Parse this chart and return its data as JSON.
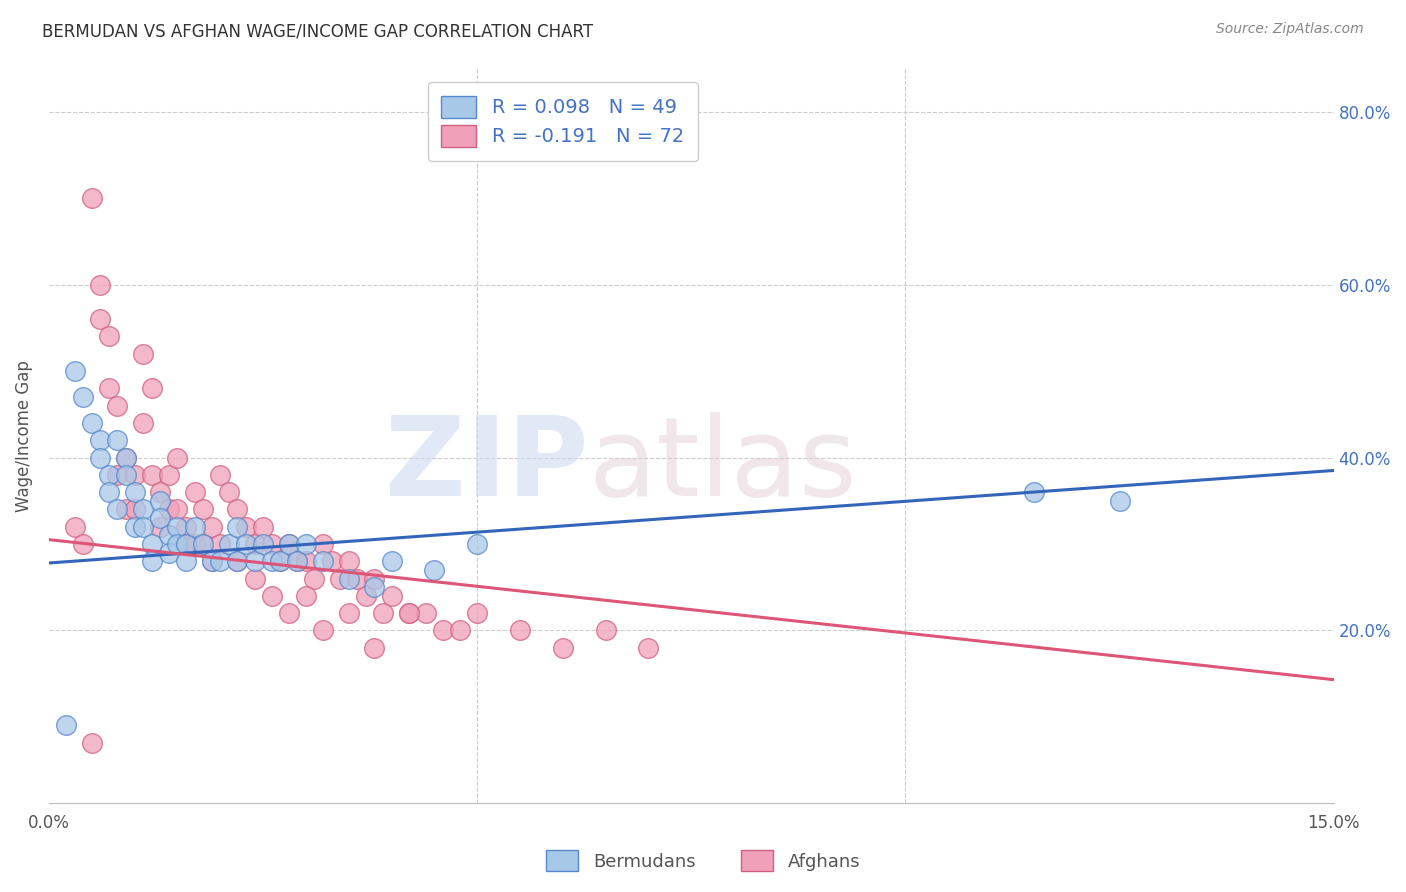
{
  "title": "BERMUDAN VS AFGHAN WAGE/INCOME GAP CORRELATION CHART",
  "source": "Source: ZipAtlas.com",
  "ylabel": "Wage/Income Gap",
  "legend_label1": "Bermudans",
  "legend_label2": "Afghans",
  "R_bermuda": 0.098,
  "N_bermuda": 49,
  "R_afghan": -0.191,
  "N_afghan": 72,
  "xmin": 0.0,
  "xmax": 0.15,
  "ymin": 0.0,
  "ymax": 0.85,
  "yticks": [
    0.2,
    0.4,
    0.6,
    0.8
  ],
  "ytick_labels": [
    "20.0%",
    "40.0%",
    "60.0%",
    "80.0%"
  ],
  "color_bermuda_fill": "#a8c8e8",
  "color_bermuda_edge": "#5588cc",
  "color_afghan_fill": "#f0a0b8",
  "color_afghan_edge": "#d06080",
  "color_bermuda_line": "#3366bb",
  "color_afghan_line": "#dd5577",
  "color_title": "#333333",
  "color_source": "#888888",
  "color_ylabel": "#555555",
  "color_right_tick": "#4472c4",
  "color_grid": "#cccccc",
  "bermuda_x": [
    0.003,
    0.004,
    0.005,
    0.006,
    0.006,
    0.007,
    0.007,
    0.008,
    0.008,
    0.009,
    0.009,
    0.01,
    0.01,
    0.011,
    0.011,
    0.012,
    0.012,
    0.013,
    0.013,
    0.014,
    0.014,
    0.015,
    0.015,
    0.016,
    0.016,
    0.017,
    0.018,
    0.019,
    0.02,
    0.021,
    0.022,
    0.022,
    0.023,
    0.024,
    0.025,
    0.026,
    0.027,
    0.028,
    0.029,
    0.03,
    0.032,
    0.035,
    0.038,
    0.04,
    0.045,
    0.05,
    0.115,
    0.125,
    0.002
  ],
  "bermuda_y": [
    0.5,
    0.47,
    0.44,
    0.42,
    0.4,
    0.38,
    0.36,
    0.34,
    0.42,
    0.4,
    0.38,
    0.36,
    0.32,
    0.34,
    0.32,
    0.3,
    0.28,
    0.35,
    0.33,
    0.31,
    0.29,
    0.32,
    0.3,
    0.3,
    0.28,
    0.32,
    0.3,
    0.28,
    0.28,
    0.3,
    0.32,
    0.28,
    0.3,
    0.28,
    0.3,
    0.28,
    0.28,
    0.3,
    0.28,
    0.3,
    0.28,
    0.26,
    0.25,
    0.28,
    0.27,
    0.3,
    0.36,
    0.35,
    0.09
  ],
  "afghan_x": [
    0.003,
    0.004,
    0.005,
    0.006,
    0.006,
    0.007,
    0.007,
    0.008,
    0.008,
    0.009,
    0.009,
    0.01,
    0.01,
    0.011,
    0.011,
    0.012,
    0.012,
    0.013,
    0.013,
    0.014,
    0.014,
    0.015,
    0.015,
    0.016,
    0.016,
    0.017,
    0.017,
    0.018,
    0.018,
    0.019,
    0.019,
    0.02,
    0.02,
    0.021,
    0.022,
    0.023,
    0.024,
    0.025,
    0.026,
    0.027,
    0.028,
    0.029,
    0.03,
    0.031,
    0.032,
    0.033,
    0.034,
    0.035,
    0.036,
    0.037,
    0.038,
    0.039,
    0.04,
    0.042,
    0.044,
    0.046,
    0.048,
    0.05,
    0.055,
    0.06,
    0.065,
    0.07,
    0.022,
    0.024,
    0.026,
    0.028,
    0.03,
    0.032,
    0.035,
    0.038,
    0.042,
    0.005
  ],
  "afghan_y": [
    0.32,
    0.3,
    0.7,
    0.6,
    0.56,
    0.54,
    0.48,
    0.46,
    0.38,
    0.4,
    0.34,
    0.38,
    0.34,
    0.52,
    0.44,
    0.48,
    0.38,
    0.36,
    0.32,
    0.38,
    0.34,
    0.4,
    0.34,
    0.32,
    0.3,
    0.36,
    0.3,
    0.34,
    0.3,
    0.32,
    0.28,
    0.38,
    0.3,
    0.36,
    0.34,
    0.32,
    0.3,
    0.32,
    0.3,
    0.28,
    0.3,
    0.28,
    0.28,
    0.26,
    0.3,
    0.28,
    0.26,
    0.28,
    0.26,
    0.24,
    0.26,
    0.22,
    0.24,
    0.22,
    0.22,
    0.2,
    0.2,
    0.22,
    0.2,
    0.18,
    0.2,
    0.18,
    0.28,
    0.26,
    0.24,
    0.22,
    0.24,
    0.2,
    0.22,
    0.18,
    0.22,
    0.07
  ],
  "blue_line_y0": 0.278,
  "blue_line_y1": 0.385,
  "pink_line_y0": 0.305,
  "pink_line_y1": 0.143
}
